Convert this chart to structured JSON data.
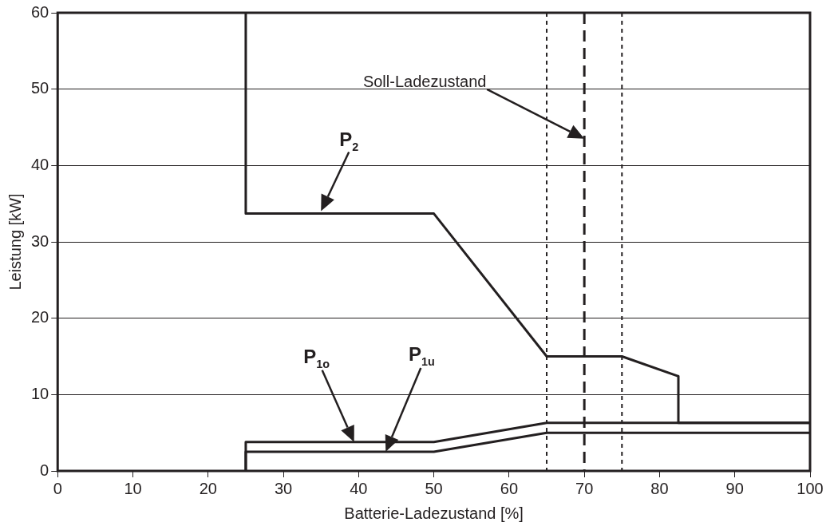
{
  "chart_data": {
    "type": "line",
    "xlabel": "Batterie-Ladezustand [%]",
    "ylabel": "Leistung [kW]",
    "xlim": [
      0,
      100
    ],
    "xticks": [
      0,
      10,
      20,
      30,
      40,
      50,
      60,
      70,
      80,
      90,
      100
    ],
    "ylim": [
      0,
      60
    ],
    "yticks": [
      0,
      10,
      20,
      30,
      40,
      50,
      60
    ],
    "grid": "y",
    "legend": false,
    "marker": "none",
    "line_style": "solid",
    "series": [
      {
        "color": "#231f20",
        "x": [
          25,
          25,
          50,
          65,
          75,
          82.5,
          82.5,
          100
        ],
        "values": [
          60,
          33.7,
          33.7,
          15,
          15,
          12.4,
          6.3,
          6.3
        ]
      },
      {
        "color": "#231f20",
        "x": [
          25,
          25,
          50,
          65,
          100
        ],
        "values": [
          0,
          3.8,
          3.8,
          6.3,
          6.3
        ]
      },
      {
        "color": "#231f20",
        "x": [
          25,
          25,
          50,
          65,
          100
        ],
        "values": [
          0,
          2.5,
          2.5,
          5,
          5
        ]
      }
    ],
    "ref_lines": [
      {
        "axis": "x",
        "value": 65,
        "line_style": "dotted",
        "color": "#231f20"
      },
      {
        "axis": "x",
        "value": 70,
        "line_style": "dashed",
        "color": "#231f20"
      },
      {
        "axis": "x",
        "value": 75,
        "line_style": "dotted",
        "color": "#231f20"
      }
    ],
    "annotations": [
      "Soll-Ladezustand",
      "P$_{2}$",
      "P$_{1o}$",
      "P$_{1u}$"
    ]
  }
}
